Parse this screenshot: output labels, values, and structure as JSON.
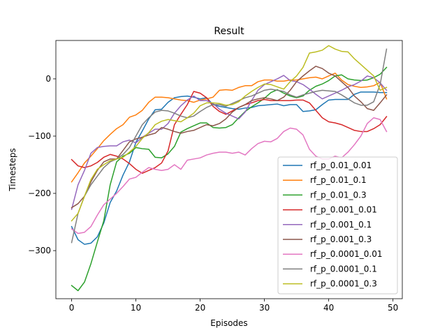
{
  "chart_data": {
    "type": "line",
    "title": "Result",
    "xlabel": "Episodes",
    "ylabel": "Timesteps",
    "xlim": [
      -2.45,
      51.45
    ],
    "ylim": [
      -384,
      67
    ],
    "xticks": [
      0,
      10,
      20,
      30,
      40,
      50
    ],
    "yticks": [
      -300,
      -200,
      -100,
      0
    ],
    "grid": false,
    "legend_position": "lower right",
    "x": [
      0,
      1,
      2,
      3,
      4,
      5,
      6,
      7,
      8,
      9,
      10,
      11,
      12,
      13,
      14,
      15,
      16,
      17,
      18,
      19,
      20,
      21,
      22,
      23,
      24,
      25,
      26,
      27,
      28,
      29,
      30,
      31,
      32,
      33,
      34,
      35,
      36,
      37,
      38,
      39,
      40,
      41,
      42,
      43,
      44,
      45,
      46,
      47,
      48,
      49
    ],
    "series": [
      {
        "name": "rf_p_0.01_0.01",
        "color": "#1f77b4",
        "values": [
          -258,
          -281,
          -289,
          -287,
          -276,
          -252,
          -216,
          -196,
          -168,
          -145,
          -111,
          -91,
          -70,
          -54,
          -53,
          -41,
          -33,
          -31,
          -30,
          -32,
          -35,
          -33,
          -45,
          -48,
          -50,
          -52,
          -53,
          -51,
          -50,
          -47,
          -46,
          -45,
          -44,
          -47,
          -45,
          -45,
          -57,
          -56,
          -54,
          -45,
          -37,
          -36,
          -36,
          -36,
          -27,
          -23,
          -23,
          -23,
          -24,
          -24
        ]
      },
      {
        "name": "rf_p_0.01_0.1",
        "color": "#ff7f0e",
        "values": [
          -180,
          -164,
          -147,
          -135,
          -122,
          -108,
          -97,
          -87,
          -80,
          -67,
          -63,
          -55,
          -41,
          -32,
          -32,
          -33,
          -35,
          -37,
          -38,
          -41,
          -37,
          -35,
          -32,
          -20,
          -19,
          -20,
          -15,
          -12,
          -12,
          -5,
          -2,
          -2,
          -4,
          -4,
          -2,
          -2,
          0,
          2,
          3,
          0,
          5,
          10,
          -2,
          -10,
          -13,
          -15,
          -14,
          -12,
          -6,
          -35
        ]
      },
      {
        "name": "rf_p_0.01_0.3",
        "color": "#2ca02c",
        "values": [
          -361,
          -370,
          -355,
          -323,
          -285,
          -248,
          -185,
          -145,
          -135,
          -130,
          -120,
          -122,
          -123,
          -137,
          -138,
          -131,
          -118,
          -93,
          -87,
          -82,
          -77,
          -77,
          -85,
          -86,
          -85,
          -80,
          -68,
          -57,
          -49,
          -42,
          -34,
          -24,
          -19,
          -25,
          -30,
          -33,
          -30,
          -20,
          -13,
          -9,
          -3,
          5,
          7,
          0,
          -2,
          -3,
          -2,
          2,
          8,
          20
        ]
      },
      {
        "name": "rf_p_0.001_0.01",
        "color": "#d62728",
        "values": [
          -141,
          -152,
          -155,
          -152,
          -146,
          -137,
          -132,
          -135,
          -140,
          -148,
          -158,
          -165,
          -160,
          -155,
          -147,
          -126,
          -80,
          -62,
          -45,
          -22,
          -25,
          -33,
          -48,
          -57,
          -62,
          -56,
          -50,
          -45,
          -42,
          -38,
          -36,
          -38,
          -38,
          -38,
          -38,
          -37,
          -37,
          -42,
          -55,
          -68,
          -75,
          -77,
          -80,
          -85,
          -90,
          -92,
          -92,
          -87,
          -80,
          -66
        ]
      },
      {
        "name": "rf_p_0.001_0.1",
        "color": "#9467bd",
        "values": [
          -228,
          -185,
          -160,
          -130,
          -120,
          -118,
          -117,
          -117,
          -110,
          -107,
          -112,
          -102,
          -95,
          -88,
          -88,
          -78,
          -60,
          -47,
          -37,
          -30,
          -38,
          -38,
          -43,
          -53,
          -60,
          -65,
          -70,
          -58,
          -38,
          -20,
          -10,
          -5,
          0,
          6,
          -3,
          -5,
          -10,
          -18,
          -27,
          -35,
          -30,
          -25,
          -20,
          -14,
          -10,
          -4,
          5,
          2,
          -7,
          -20
        ]
      },
      {
        "name": "rf_p_0.001_0.3",
        "color": "#8c564b",
        "values": [
          -225,
          -218,
          -205,
          -180,
          -160,
          -145,
          -140,
          -140,
          -125,
          -110,
          -105,
          -102,
          -98,
          -95,
          -85,
          -88,
          -92,
          -95,
          -92,
          -90,
          -85,
          -80,
          -82,
          -78,
          -70,
          -58,
          -50,
          -45,
          -38,
          -35,
          -33,
          -35,
          -38,
          -32,
          -20,
          -5,
          5,
          14,
          22,
          18,
          10,
          5,
          -5,
          -15,
          -30,
          -40,
          -52,
          -55,
          -42,
          -28
        ]
      },
      {
        "name": "rf_p_0.0001_0.01",
        "color": "#e377c2",
        "values": [
          -262,
          -270,
          -268,
          -258,
          -238,
          -220,
          -210,
          -200,
          -188,
          -175,
          -172,
          -163,
          -155,
          -158,
          -160,
          -158,
          -150,
          -158,
          -142,
          -140,
          -138,
          -133,
          -130,
          -128,
          -128,
          -130,
          -128,
          -133,
          -122,
          -113,
          -109,
          -110,
          -104,
          -92,
          -86,
          -88,
          -98,
          -123,
          -135,
          -140,
          -140,
          -135,
          -138,
          -128,
          -115,
          -100,
          -78,
          -68,
          -71,
          -92
        ]
      },
      {
        "name": "rf_p_0.0001_0.1",
        "color": "#7f7f7f",
        "values": [
          -286,
          -235,
          -205,
          -185,
          -170,
          -155,
          -145,
          -140,
          -132,
          -120,
          -100,
          -80,
          -68,
          -58,
          -55,
          -56,
          -60,
          -65,
          -68,
          -65,
          -57,
          -50,
          -45,
          -45,
          -48,
          -43,
          -38,
          -33,
          -30,
          -25,
          -20,
          -18,
          -20,
          -22,
          -28,
          -32,
          -28,
          -25,
          -22,
          -20,
          -21,
          -22,
          -28,
          -35,
          -42,
          -46,
          -46,
          -40,
          -10,
          52
        ]
      },
      {
        "name": "rf_p_0.0001_0.3",
        "color": "#bcbd22",
        "values": [
          -248,
          -235,
          -205,
          -176,
          -158,
          -150,
          -143,
          -140,
          -137,
          -128,
          -118,
          -104,
          -94,
          -80,
          -74,
          -71,
          -73,
          -75,
          -68,
          -60,
          -47,
          -42,
          -42,
          -43,
          -46,
          -45,
          -40,
          -30,
          -22,
          -15,
          -9,
          -10,
          -14,
          -18,
          -5,
          5,
          20,
          45,
          47,
          50,
          58,
          52,
          48,
          47,
          35,
          25,
          15,
          5,
          -20,
          -15
        ]
      }
    ]
  }
}
